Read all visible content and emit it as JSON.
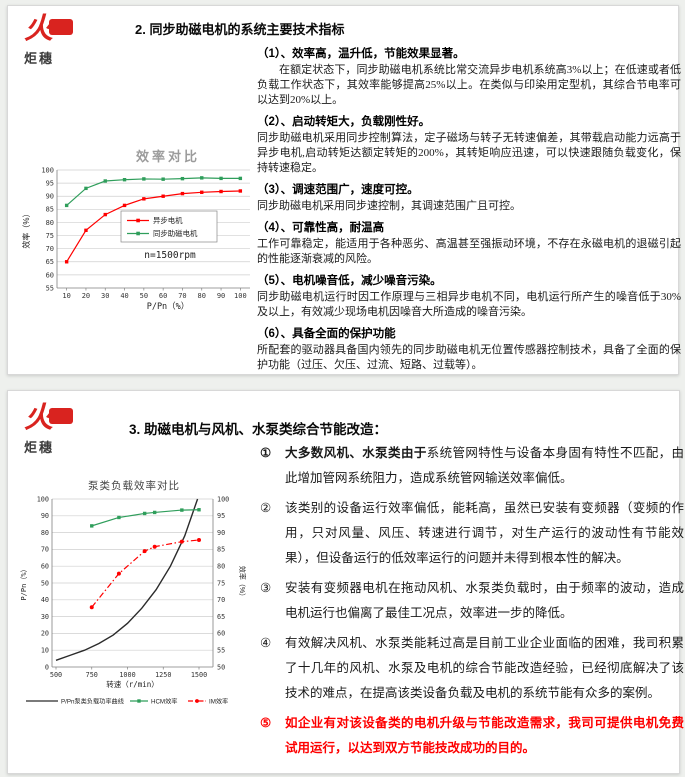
{
  "logo": {
    "brand_text": "炬穗"
  },
  "colors": {
    "logo_red": "#d9231f",
    "highlight_red": "#fe0000",
    "chart_green": "#2f9e5b",
    "chart_red": "#ff0000",
    "chart_black": "#2b2b2b"
  },
  "section2": {
    "title": "2. 同步助磁电机的系统主要技术指标",
    "items": [
      {
        "heading": "（1）、效率高，温升低，节能效果显著。",
        "body": "在额定状态下，同步助磁电机系统比常交流异步电机系统高3%以上；在低速或者低负载工作状态下，其效率能够提高25%以上。在类似与印染用定型机，其综合节电率可以达到20%以上。"
      },
      {
        "heading": "（2）、启动转矩大，负载刚性好。",
        "body": "同步助磁电机采用同步控制算法，定子磁场与转子无转速偏差，其带载启动能力远高于异步电机,启动转矩达额定转矩的200%，其转矩响应迅速，可以快速跟随负载变化，保持转速稳定。"
      },
      {
        "heading": "（3）、调速范围广，速度可控。",
        "body": "同步助磁电机采用同步速控制，其调速范围广且可控。"
      },
      {
        "heading": "（4）、可靠性高，耐温高",
        "body": "工作可靠稳定，能适用于各种恶劣、高温甚至强振动环境，不存在永磁电机的退磁引起的性能逐渐衰减的风险。"
      },
      {
        "heading": "（5）、电机噪音低，减少噪音污染。",
        "body": "同步助磁电机运行时因工作原理与三相异步电机不同，电机运行所产生的噪音低于30%及以上，有效减少现场电机因噪音大所造成的噪音污染。"
      },
      {
        "heading": "（6）、具备全面的保护功能",
        "body": "所配套的驱动器具备国内领先的同步助磁电机无位置传感器控制技术，具备了全面的保护功能（过压、欠压、过流、短路、过载等）。"
      }
    ]
  },
  "section3": {
    "title": "3. 助磁电机与风机、水泵类综合节能改造：",
    "items": [
      {
        "marker": "①",
        "lead": "大多数风机、水泵类由于",
        "text": "系统管网特性与设备本身固有特性不匹配，由此增加管网系统阻力，造成系统管网输送效率偏低。"
      },
      {
        "marker": "②",
        "lead": "",
        "text": "该类别的设备运行效率偏低，能耗高，虽然已安装有变频器（变频的作用，只对风量、风压、转速进行调节，对生产运行的波动性有节能效果），但设备运行的低效率运行的问题并未得到根本性的解决。"
      },
      {
        "marker": "③",
        "lead": "",
        "text": "安装有变频器电机在拖动风机、水泵类负载时，由于频率的波动，造成电机运行也偏离了最佳工况点，效率进一步的降低。"
      },
      {
        "marker": "④",
        "lead": "",
        "text": "有效解决风机、水泵类能耗过高是目前工业企业面临的困难，我司积累了十几年的风机、水泵及电机的综合节能改造经验，已经彻底解决了该技术的难点，在提高该类设备负载及电机的系统节能有众多的案例。"
      },
      {
        "marker": "⑤",
        "lead": "",
        "text": "如企业有对该设备类的电机升级与节能改造需求，我司可提供电机免费试用运行，以达到双方节能技改成功的目的。"
      }
    ]
  },
  "chart_data": [
    {
      "type": "line",
      "title": "效率对比",
      "xlabel": "P/Pn（%）",
      "ylabel": "效率（%）",
      "x": [
        10,
        20,
        30,
        40,
        50,
        60,
        70,
        80,
        90,
        100
      ],
      "ylim": [
        55,
        100
      ],
      "ytick_step": 5,
      "grid": true,
      "legend_position": "middle-right",
      "annotation": "n=1500rpm",
      "series": [
        {
          "name": "异步电机",
          "color": "#ff0000",
          "values": [
            65,
            77,
            83,
            86.5,
            89,
            90,
            91,
            91.5,
            91.8,
            92
          ]
        },
        {
          "name": "同步助磁电机",
          "color": "#2f9e5b",
          "values": [
            86.5,
            93,
            95.8,
            96.3,
            96.6,
            96.5,
            96.7,
            97,
            96.8,
            96.8
          ]
        }
      ]
    },
    {
      "type": "line-dual-axis",
      "title": "泵类负载效率对比",
      "xlabel": "转速（r/min）",
      "ylabel_left": "P/Pn（%）",
      "ylabel_right": "效率（%）",
      "xlim": [
        500,
        1500
      ],
      "xticks": [
        500,
        750,
        1000,
        1250,
        1500
      ],
      "ylim_left": [
        0,
        100
      ],
      "ytick_step_left": 10,
      "ylim_right": [
        50,
        100
      ],
      "ytick_step_right": 5,
      "grid": true,
      "legend_position": "bottom",
      "series": [
        {
          "name": "P/Pn泵类负载功率曲线",
          "axis": "left",
          "color": "#2b2b2b",
          "style": "solid",
          "markers": false,
          "x": [
            500,
            600,
            700,
            800,
            900,
            1000,
            1100,
            1200,
            1300,
            1400,
            1490
          ],
          "values": [
            4,
            7,
            10,
            14,
            19,
            26,
            35,
            46,
            60,
            78,
            100
          ]
        },
        {
          "name": "HCM效率",
          "axis": "right",
          "color": "#2f9e5b",
          "style": "solid",
          "markers": true,
          "x": [
            750,
            940,
            1120,
            1190,
            1380,
            1500
          ],
          "values": [
            92,
            94.5,
            95.7,
            96,
            96.7,
            96.8
          ]
        },
        {
          "name": "IM效率",
          "axis": "right",
          "color": "#ff0000",
          "style": "dashdot",
          "markers": true,
          "x": [
            750,
            940,
            1120,
            1190,
            1380,
            1500
          ],
          "values": [
            67.8,
            77.8,
            84.5,
            85.8,
            87.3,
            87.8
          ]
        }
      ]
    }
  ]
}
